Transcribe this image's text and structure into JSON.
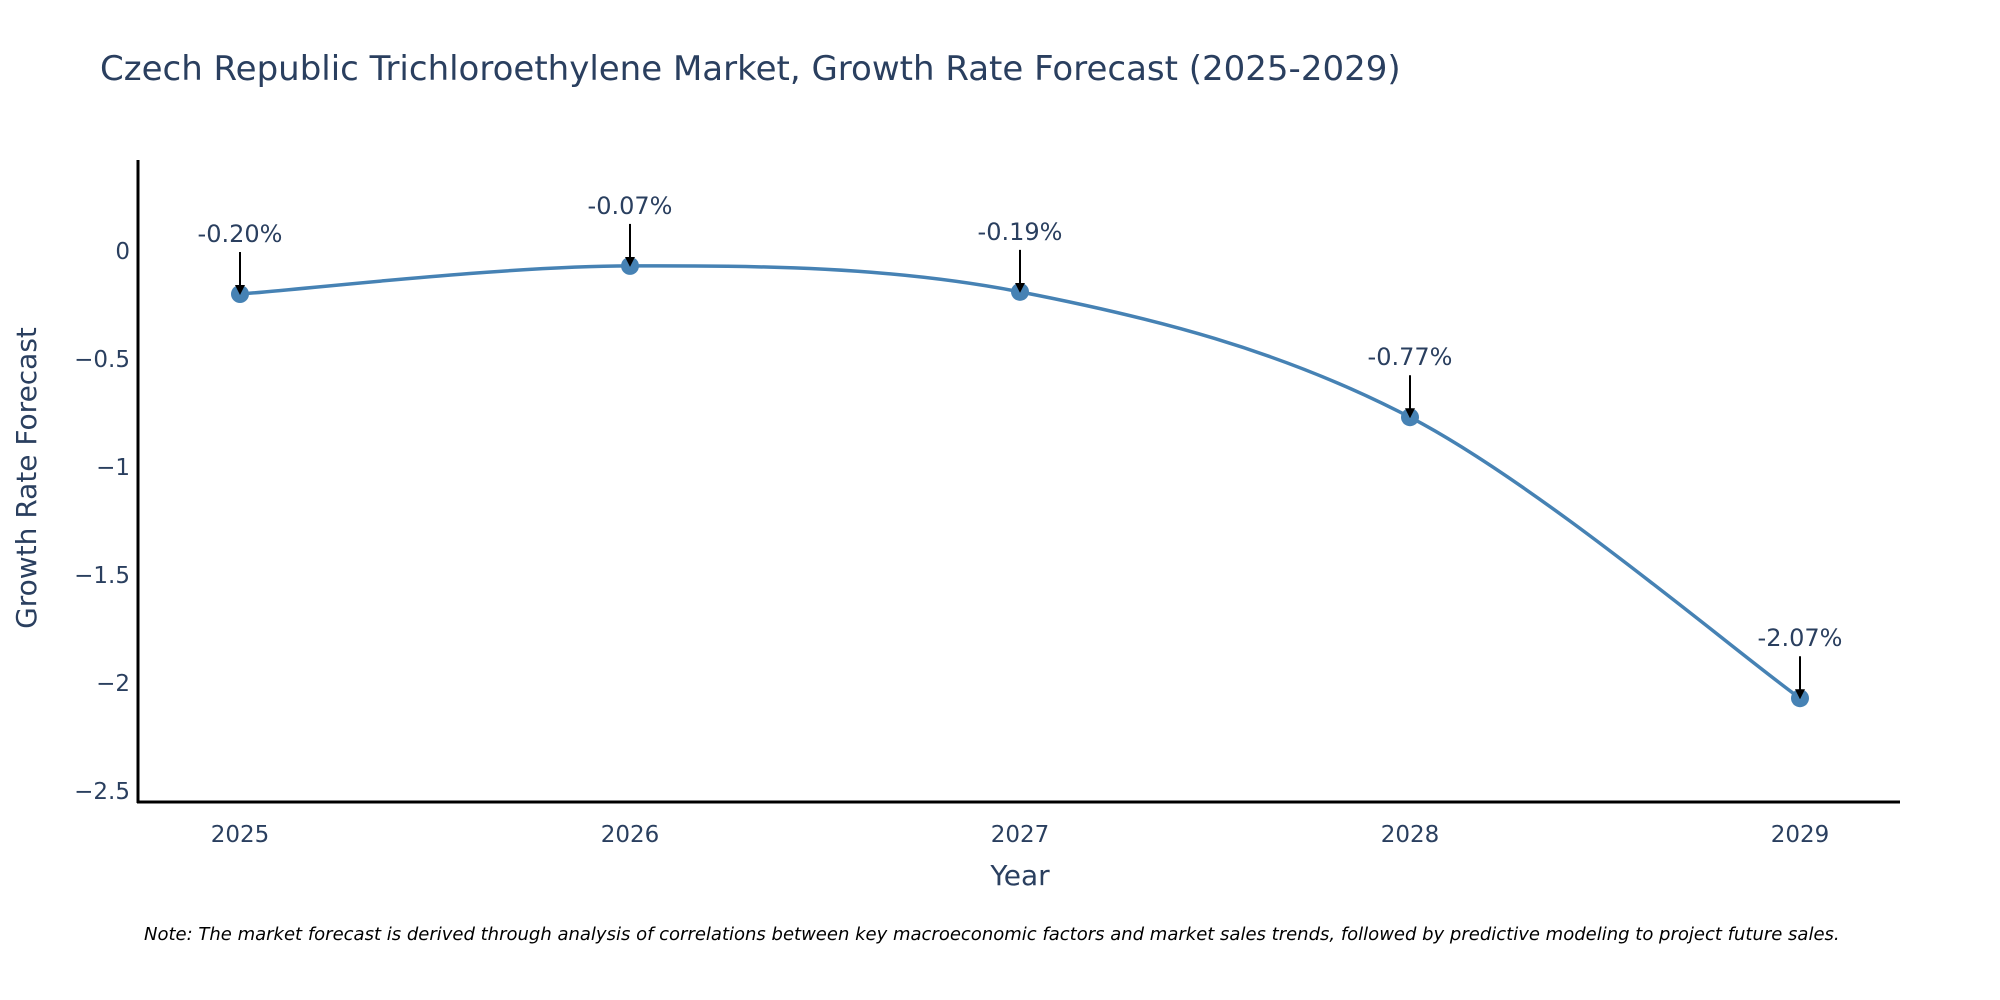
{
  "chart_data": {
    "type": "line",
    "title": "Czech Republic Trichloroethylene Market, Growth Rate Forecast (2025-2029)",
    "xlabel": "Year",
    "ylabel": "Growth Rate Forecast",
    "categories": [
      "2025",
      "2026",
      "2027",
      "2028",
      "2029"
    ],
    "values": [
      -0.2,
      -0.07,
      -0.19,
      -0.77,
      -2.07
    ],
    "data_labels": [
      "-0.20%",
      "-0.07%",
      "-0.19%",
      "-0.77%",
      "-2.07%"
    ],
    "ylim": [
      -2.55,
      0.42
    ],
    "yticks": [
      0,
      -0.5,
      -1,
      -1.5,
      -2,
      -2.5
    ],
    "ytick_labels": [
      "0",
      "−0.5",
      "−1",
      "−1.5",
      "−2",
      "−2.5"
    ],
    "line_shape": "spline",
    "grid": false,
    "legend": "none",
    "colors": {
      "line": "#4682b4",
      "marker": "#4682b4",
      "text": "#2a3f5f",
      "axis": "#000000",
      "arrow": "#000000"
    }
  },
  "note": "Note: The market forecast is derived through analysis of correlations between key macroeconomic factors and market sales trends, followed by predictive modeling to project future sales."
}
